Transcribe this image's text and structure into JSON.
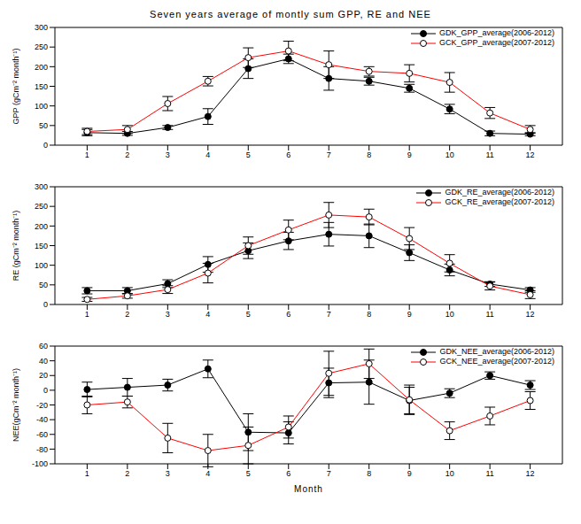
{
  "title": "Seven years average of montly sum GPP, RE and NEE",
  "chart_data": [
    {
      "type": "line",
      "y_label": "GPP (gCm⁻² month⁻¹)",
      "x": [
        1,
        2,
        3,
        4,
        5,
        6,
        7,
        8,
        9,
        10,
        11,
        12
      ],
      "xlim": [
        0.2,
        12.8
      ],
      "xticks": [
        1,
        2,
        3,
        4,
        5,
        6,
        7,
        8,
        9,
        10,
        11,
        12
      ],
      "ylim": [
        0,
        300
      ],
      "yticks": [
        0,
        50,
        100,
        150,
        200,
        250,
        300
      ],
      "grid": false,
      "legend": "upper right",
      "series": [
        {
          "name": "GDK_GPP_average(2006-2012)",
          "color": "#000000",
          "marker": "filled_circle",
          "values": [
            32,
            30,
            45,
            73,
            195,
            220,
            170,
            163,
            145,
            92,
            30,
            28
          ],
          "errors": [
            8,
            5,
            5,
            20,
            25,
            12,
            30,
            10,
            10,
            12,
            6,
            4
          ]
        },
        {
          "name": "GCK_GPP_average(2007-2012)",
          "color": "#ff0000",
          "marker": "open_circle",
          "values": [
            35,
            40,
            106,
            163,
            223,
            240,
            205,
            188,
            183,
            160,
            82,
            40
          ],
          "errors": [
            8,
            10,
            18,
            12,
            25,
            25,
            35,
            12,
            22,
            25,
            14,
            10
          ]
        }
      ]
    },
    {
      "type": "line",
      "y_label": "RE (gCm⁻² month⁻¹)",
      "x": [
        1,
        2,
        3,
        4,
        5,
        6,
        7,
        8,
        9,
        10,
        11,
        12
      ],
      "xlim": [
        0.2,
        12.8
      ],
      "xticks": [
        1,
        2,
        3,
        4,
        5,
        6,
        7,
        8,
        9,
        10,
        11,
        12
      ],
      "ylim": [
        0,
        300
      ],
      "yticks": [
        0,
        50,
        100,
        150,
        200,
        250,
        300
      ],
      "grid": false,
      "legend": "upper right",
      "series": [
        {
          "name": "GDK_RE_average(2006-2012)",
          "color": "#000000",
          "marker": "filled_circle",
          "values": [
            35,
            35,
            53,
            102,
            137,
            162,
            179,
            175,
            132,
            88,
            52,
            37
          ],
          "errors": [
            8,
            8,
            10,
            20,
            20,
            22,
            30,
            30,
            20,
            15,
            6,
            6
          ]
        },
        {
          "name": "GCK_RE_average(2007-2012)",
          "color": "#ff0000",
          "marker": "open_circle",
          "values": [
            13,
            22,
            38,
            80,
            150,
            190,
            228,
            223,
            168,
            105,
            47,
            25
          ],
          "errors": [
            5,
            6,
            10,
            25,
            22,
            25,
            32,
            20,
            28,
            22,
            10,
            10
          ]
        }
      ]
    },
    {
      "type": "line",
      "y_label": "NEE(gCm⁻² month⁻¹)",
      "x_label": "Month",
      "x": [
        1,
        2,
        3,
        4,
        5,
        6,
        7,
        8,
        9,
        10,
        11,
        12
      ],
      "xlim": [
        0.2,
        12.8
      ],
      "xticks": [
        1,
        2,
        3,
        4,
        5,
        6,
        7,
        8,
        9,
        10,
        11,
        12
      ],
      "ylim": [
        -100,
        60
      ],
      "yticks": [
        -100,
        -80,
        -60,
        -40,
        -20,
        0,
        20,
        40,
        60
      ],
      "grid": false,
      "legend": "upper right",
      "series": [
        {
          "name": "GDK_NEE_average(2006-2012)",
          "color": "#000000",
          "marker": "filled_circle",
          "values": [
            1,
            4,
            7,
            29,
            -57,
            -58,
            10,
            11,
            -14,
            -4,
            20,
            7
          ],
          "errors": [
            10,
            12,
            8,
            12,
            25,
            15,
            20,
            30,
            18,
            6,
            5,
            6
          ]
        },
        {
          "name": "GCK_NEE_average(2007-2012)",
          "color": "#ff0000",
          "marker": "open_circle",
          "values": [
            -20,
            -16,
            -65,
            -82,
            -75,
            -50,
            23,
            36,
            -13,
            -55,
            -35,
            -14
          ],
          "errors": [
            12,
            8,
            20,
            22,
            25,
            15,
            30,
            20,
            20,
            12,
            12,
            12
          ]
        }
      ]
    }
  ]
}
